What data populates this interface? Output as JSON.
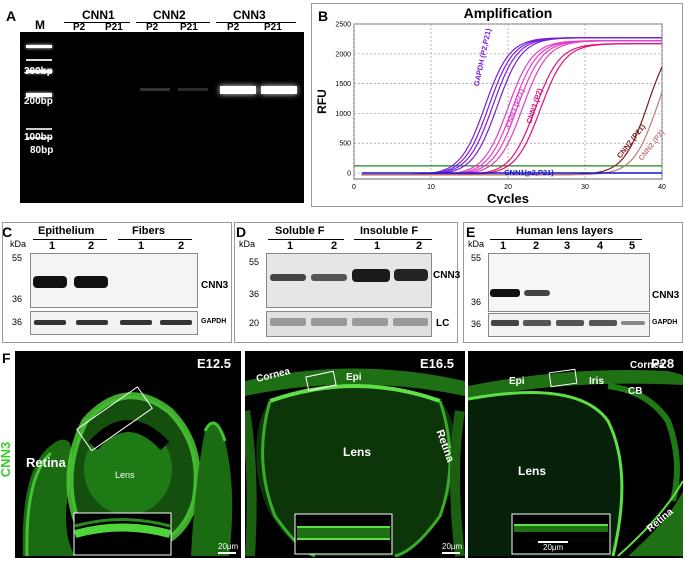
{
  "panels": {
    "a": {
      "label": "A"
    },
    "b": {
      "label": "B"
    },
    "c": {
      "label": "C"
    },
    "d": {
      "label": "D"
    },
    "e": {
      "label": "E"
    },
    "f": {
      "label": "F"
    }
  },
  "gel": {
    "marker_label": "M",
    "groups": [
      "CNN1",
      "CNN2",
      "CNN3"
    ],
    "lanes": [
      "P2",
      "P21",
      "P2",
      "P21",
      "P2",
      "P21"
    ],
    "size_labels": [
      "300bp",
      "200bp",
      "100bp",
      "80bp"
    ]
  },
  "chart_data": {
    "type": "line",
    "title": "Amplification",
    "xlabel": "Cycles",
    "ylabel": "RFU",
    "xlim": [
      0,
      40
    ],
    "ylim": [
      -100,
      2500
    ],
    "xticks": [
      0,
      10,
      20,
      30,
      40
    ],
    "yticks": [
      0,
      500,
      1000,
      1500,
      2000,
      2500
    ],
    "threshold": 120,
    "grid": true,
    "series": [
      {
        "name": "GAPDH (P2,P21)",
        "color": "#7a1fd6",
        "midpoints": [
          17,
          17.5,
          18,
          18.6
        ],
        "plateau": 2300
      },
      {
        "name": "CNN3 (P21)",
        "color": "#e23fc6",
        "midpoints": [
          20,
          20.6,
          21.2,
          21.9
        ],
        "plateau": 2250
      },
      {
        "name": "CNN3 (P2)",
        "color": "#e0107a",
        "midpoints": [
          23.5,
          24.2
        ],
        "plateau": 2200
      },
      {
        "name": "CNN2 (P21)",
        "color": "#7a1a1a",
        "midpoints": [
          38.2
        ],
        "plateau": 2400
      },
      {
        "name": "CNN2 (P2)",
        "color": "#c47a7a",
        "midpoints": [
          39.5
        ],
        "plateau": 2400
      },
      {
        "name": "CNN1(p2,P21)",
        "color": "#1515c8",
        "flat": true
      }
    ]
  },
  "blot_c": {
    "kda": "kDa",
    "groups": [
      "Epithelium",
      "Fibers"
    ],
    "lanes": [
      "1",
      "2",
      "1",
      "2"
    ],
    "mw_top": [
      "55",
      "36"
    ],
    "mw_bottom": "36",
    "protein": "CNN3",
    "loading": "GAPDH"
  },
  "blot_d": {
    "kda": "kDa",
    "groups": [
      "Soluble F",
      "Insoluble F"
    ],
    "lanes": [
      "1",
      "2",
      "1",
      "2"
    ],
    "mw_top": [
      "55",
      "36"
    ],
    "mw_bottom": "20",
    "protein": "CNN3",
    "loading": "LC"
  },
  "blot_e": {
    "kda": "kDa",
    "group": "Human lens layers",
    "lanes": [
      "1",
      "2",
      "3",
      "4",
      "5"
    ],
    "mw_top": [
      "55",
      "36"
    ],
    "mw_bottom": "36",
    "protein": "CNN3",
    "loading": "GAPDH"
  },
  "micro": {
    "side_label": "CNN3",
    "scale": "20μm",
    "panel1": {
      "stage": "E12.5",
      "retina": "Retina",
      "lens": "Lens"
    },
    "panel2": {
      "stage": "E16.5",
      "cornea": "Cornea",
      "epi": "Epi",
      "lens": "Lens",
      "retina": "Retina"
    },
    "panel3": {
      "stage": "P28",
      "cornea": "Cornea",
      "epi": "Epi",
      "iris": "Iris",
      "cb": "CB",
      "lens": "Lens",
      "retina": "Retina"
    }
  }
}
